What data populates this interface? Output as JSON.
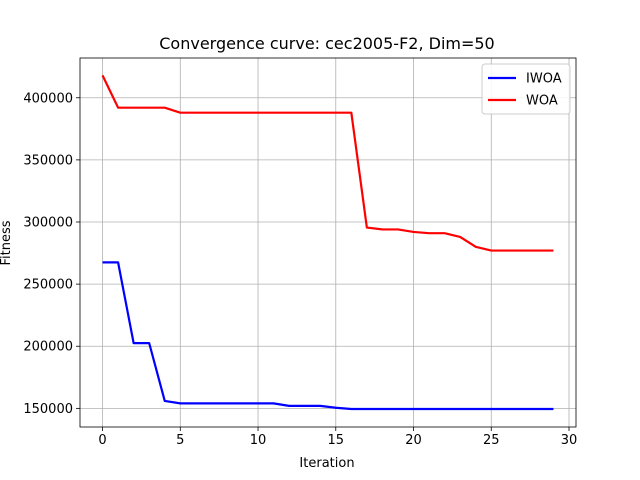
{
  "chart_data": {
    "type": "line",
    "title": "Convergence curve:  cec2005-F2, Dim=50",
    "xlabel": "Iteration",
    "ylabel": "Fitness",
    "xlim": [
      -1.45,
      30.45
    ],
    "ylim": [
      135000,
      432000
    ],
    "x_ticks": [
      0,
      5,
      10,
      15,
      20,
      25,
      30
    ],
    "y_ticks": [
      150000,
      200000,
      250000,
      300000,
      350000,
      400000
    ],
    "grid": true,
    "legend_position": "top-right",
    "x": [
      0,
      1,
      2,
      3,
      4,
      5,
      6,
      7,
      8,
      9,
      10,
      11,
      12,
      13,
      14,
      15,
      16,
      17,
      18,
      19,
      20,
      21,
      22,
      23,
      24,
      25,
      26,
      27,
      28,
      29
    ],
    "series": [
      {
        "name": "IWOA",
        "color": "#0000ff",
        "values": [
          267500,
          267500,
          202500,
          202500,
          156000,
          154000,
          154000,
          154000,
          154000,
          154000,
          154000,
          154000,
          152000,
          152000,
          152000,
          150500,
          149500,
          149500,
          149500,
          149500,
          149500,
          149500,
          149500,
          149500,
          149500,
          149500,
          149500,
          149500,
          149500,
          149500
        ]
      },
      {
        "name": "WOA",
        "color": "#ff0000",
        "values": [
          418000,
          392000,
          392000,
          392000,
          392000,
          388000,
          388000,
          388000,
          388000,
          388000,
          388000,
          388000,
          388000,
          388000,
          388000,
          388000,
          388000,
          295500,
          294000,
          294000,
          292000,
          291000,
          291000,
          288000,
          280000,
          277000,
          277000,
          277000,
          277000,
          277000
        ]
      }
    ]
  }
}
